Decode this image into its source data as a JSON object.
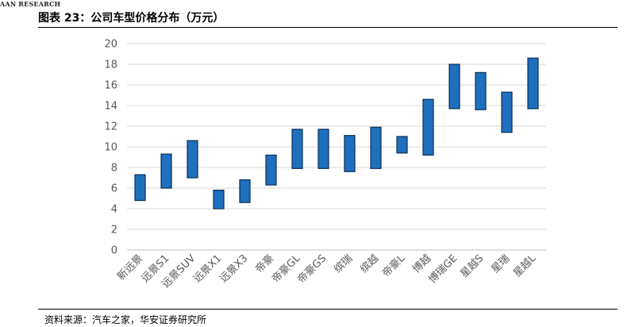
{
  "header": {
    "watermark": "AAN RESEARCH",
    "figure_title": "图表 23：公司车型价格分布（万元）"
  },
  "footer": {
    "source": "资料来源：汽车之家，华安证券研究所"
  },
  "colors": {
    "bar": "#1f6fbf",
    "bar_edge": "#0b2f55",
    "grid": "#d9d9d9",
    "axis": "#bfbfbf"
  },
  "chart_data": {
    "type": "bar",
    "subtype": "floating-range",
    "title": "",
    "xlabel": "",
    "ylabel": "",
    "ylim": [
      0,
      20
    ],
    "yticks": [
      0,
      2,
      4,
      6,
      8,
      10,
      12,
      14,
      16,
      18,
      20
    ],
    "grid": true,
    "legend": "none",
    "categories": [
      "新远景",
      "远景S1",
      "远景SUV",
      "远景X1",
      "远景X3",
      "帝豪",
      "帝豪GL",
      "帝豪GS",
      "缤瑞",
      "缤越",
      "帝豪L",
      "博越",
      "博瑞GE",
      "星越S",
      "星瑞",
      "星越L"
    ],
    "low": [
      4.8,
      6.0,
      7.0,
      4.0,
      4.6,
      6.3,
      7.9,
      7.9,
      7.6,
      7.9,
      9.4,
      9.2,
      13.7,
      13.6,
      11.4,
      13.7
    ],
    "high": [
      7.3,
      9.3,
      10.6,
      5.8,
      6.8,
      9.2,
      11.7,
      11.7,
      11.1,
      11.9,
      11.0,
      14.6,
      18.0,
      17.2,
      15.3,
      18.6
    ]
  }
}
